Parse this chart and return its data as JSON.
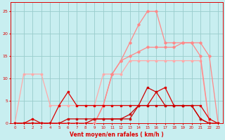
{
  "x": [
    0,
    1,
    2,
    3,
    4,
    5,
    6,
    7,
    8,
    9,
    10,
    11,
    12,
    13,
    14,
    15,
    16,
    17,
    18,
    19,
    20,
    21,
    22,
    23
  ],
  "series_pink1": [
    0,
    11,
    11,
    11,
    4,
    4,
    4,
    4,
    4,
    4,
    11,
    11,
    11,
    14,
    14,
    14,
    14,
    14,
    14,
    14,
    14,
    14,
    0,
    0
  ],
  "series_pink2": [
    0,
    0,
    0,
    0,
    0,
    0,
    0,
    0,
    0,
    0,
    4,
    11,
    14,
    18,
    22,
    25,
    25,
    18,
    18,
    18,
    18,
    15,
    0,
    0
  ],
  "series_pink3": [
    0,
    0,
    0,
    0,
    0,
    0,
    0,
    0,
    0,
    0,
    4,
    11,
    14,
    15,
    16,
    17,
    17,
    17,
    17,
    18,
    18,
    18,
    15,
    0
  ],
  "series_red1": [
    0,
    0,
    1,
    0,
    0,
    4,
    7,
    4,
    4,
    4,
    4,
    4,
    4,
    4,
    4,
    4,
    7,
    8,
    4,
    4,
    4,
    4,
    1,
    0
  ],
  "series_red2": [
    0,
    0,
    0,
    0,
    0,
    0,
    1,
    1,
    1,
    1,
    1,
    1,
    1,
    1,
    4,
    8,
    7,
    4,
    4,
    4,
    4,
    1,
    0,
    0
  ],
  "series_red3": [
    0,
    0,
    0,
    0,
    0,
    0,
    0,
    0,
    0,
    1,
    1,
    1,
    1,
    2,
    4,
    4,
    4,
    4,
    4,
    4,
    4,
    1,
    0,
    0
  ],
  "color_lpink": "#ffaaaa",
  "color_mpink": "#ff8888",
  "color_red": "#dd0000",
  "color_dred": "#cc0000",
  "bg_color": "#c8eef0",
  "grid_color": "#99cccc",
  "xlabel": "Vent moyen/en rafales ( km/h )",
  "ylim": [
    0,
    27
  ],
  "xlim": [
    -0.5,
    23.5
  ]
}
